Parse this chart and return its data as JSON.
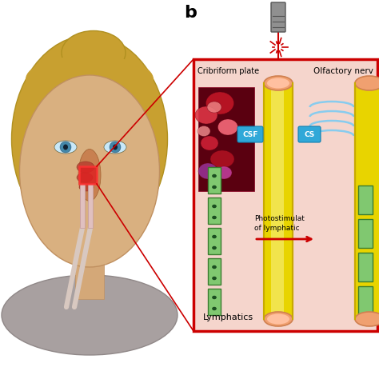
{
  "bg_color": "#ffffff",
  "label_b": "b",
  "panel_bg": "#f5d5cc",
  "panel_border": "#cc0000",
  "olfactory_nerve_label": "Olfactory nerv",
  "cribriform_plate_label": "Cribriform plate",
  "csf_label1": "CSF",
  "csf_label2": "CS",
  "lymphatics_label": "Lymphatics",
  "photostim_label1": "Photostimulat",
  "photostim_label2": "of lymphatic",
  "nerve_yellow": "#e8d400",
  "nerve_dark_yellow": "#c8aa00",
  "nerve_highlight": "#f0a080",
  "lymph_outer": "#3a7c2f",
  "lymph_inner": "#80c870",
  "csf_blue": "#30a8d8",
  "arrow_red": "#cc0000",
  "tissue_dark": "#8b1520",
  "tissue_red1": "#cc2030",
  "tissue_red2": "#dd5060",
  "tissue_pink": "#ee9090",
  "tissue_purple": "#993399"
}
